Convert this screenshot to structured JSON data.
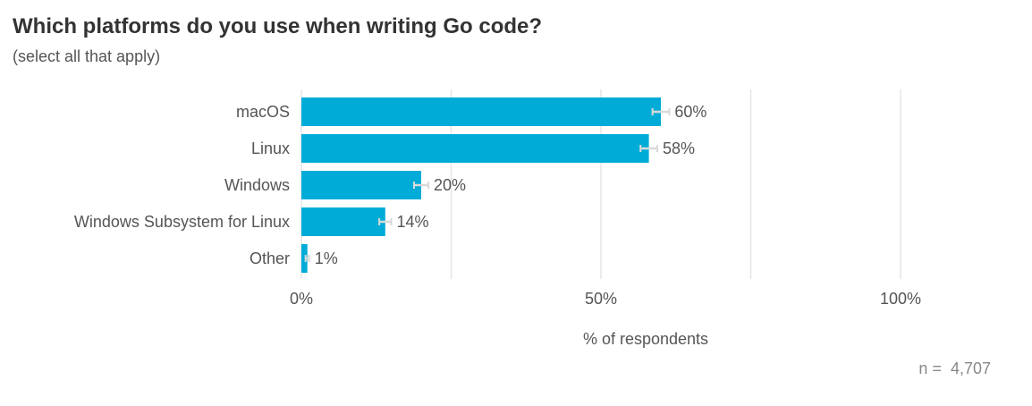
{
  "chart_data": {
    "type": "bar",
    "orientation": "horizontal",
    "title": "Which platforms do you use when writing Go code?",
    "subtitle": "(select all that apply)",
    "categories": [
      "macOS",
      "Linux",
      "Windows",
      "Windows Subsystem for Linux",
      "Other"
    ],
    "values": [
      60,
      58,
      20,
      14,
      1
    ],
    "value_labels": [
      "60%",
      "58%",
      "20%",
      "14%",
      "1%"
    ],
    "error_margin": [
      1.4,
      1.4,
      1.2,
      1.0,
      0.3
    ],
    "xlabel": "% of respondents",
    "xlim": [
      0,
      100
    ],
    "xticks": [
      0,
      50,
      100
    ],
    "xtick_labels": [
      "0%",
      "50%",
      "100%"
    ],
    "gridlines": [
      0,
      25,
      50,
      75,
      100
    ],
    "grid": true,
    "n_label": "n =  4,707",
    "bar_color": "#00ACD7",
    "error_color": "#D9D9D9"
  }
}
